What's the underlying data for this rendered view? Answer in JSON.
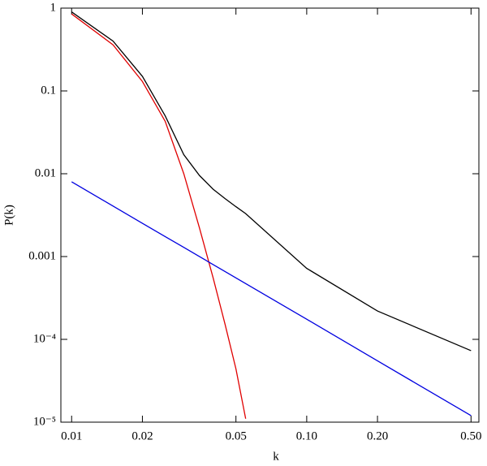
{
  "chart_data": {
    "type": "line",
    "x_label": "k",
    "y_label": "P(k)",
    "x_scale": "log",
    "y_scale": "log",
    "grid": false,
    "xlim": [
      0.009,
      0.54
    ],
    "ylim": [
      1e-05,
      1
    ],
    "xticks": [
      0.01,
      0.02,
      0.05,
      {
        "value": 0.1,
        "label": "0.10"
      },
      {
        "value": 0.2,
        "label": "0.20"
      },
      {
        "value": 0.5,
        "label": "0.50"
      }
    ],
    "yticks": [
      {
        "value": 1e-05,
        "label": "10⁻⁵"
      },
      {
        "value": 0.0001,
        "label": "10⁻⁴"
      },
      0.001,
      0.01,
      0.1,
      1
    ],
    "x": [
      0.01,
      0.015,
      0.02,
      0.025,
      0.03,
      0.035,
      0.04,
      0.045,
      0.05,
      0.055,
      0.1,
      0.2,
      0.5
    ],
    "series": [
      {
        "color": "#000000",
        "values": [
          0.9,
          0.4,
          0.15,
          0.05,
          0.017,
          0.0095,
          0.0065,
          0.005,
          0.004,
          0.0033,
          0.00072,
          0.00022,
          7.3e-05
        ]
      },
      {
        "color": "#e00000",
        "values": [
          0.85,
          0.36,
          0.13,
          0.043,
          0.01,
          0.0022,
          0.00055,
          0.00015,
          4.4e-05,
          1.1e-05,
          null,
          null,
          null
        ]
      },
      {
        "color": "#0000e0",
        "values": [
          0.008,
          0.00407,
          0.00252,
          0.00174,
          0.00129,
          0.000998,
          0.0008,
          0.000658,
          0.000552,
          0.000471,
          0.000175,
          5.5e-05,
          1.2e-05
        ]
      }
    ]
  }
}
